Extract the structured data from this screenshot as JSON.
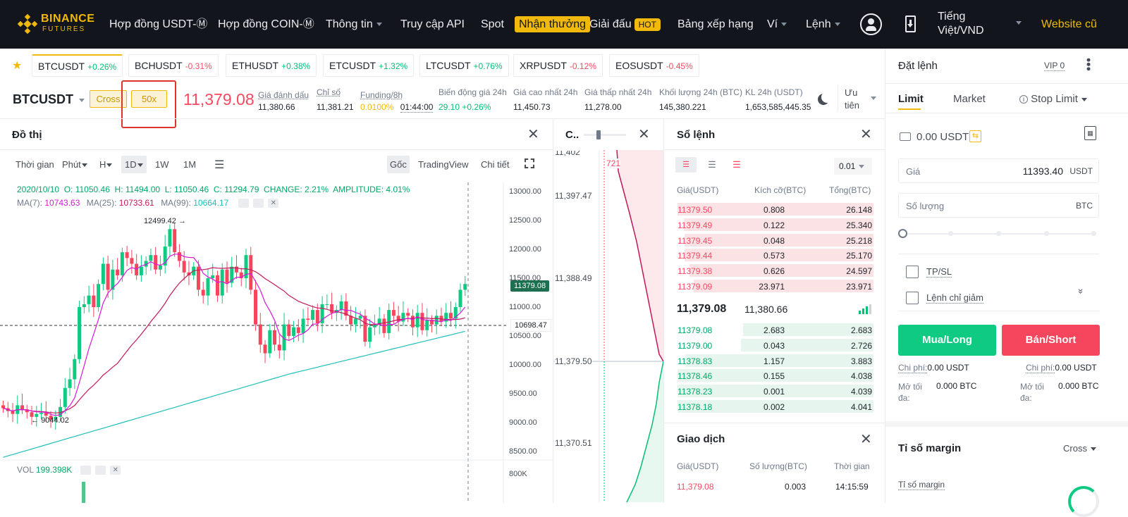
{
  "nav": {
    "logo_top": "BINANCE",
    "logo_bottom": "FUTURES",
    "items": [
      "Hợp đồng USDT-Ⓜ",
      "Hợp đồng COIN-Ⓜ",
      "Thông tin",
      "Truy cập API",
      "Spot",
      "Nhận thưởng",
      "Giải đấu",
      "Bảng xếp hạng",
      "Ví",
      "Lệnh"
    ],
    "hot": "HOT",
    "lang_line1": "Tiếng",
    "lang_line2": "Việt/VND",
    "website": "Website cũ"
  },
  "tickers": [
    {
      "sym": "BTCUSDT",
      "chg": "+0.26%",
      "up": true
    },
    {
      "sym": "BCHUSDT",
      "chg": "-0.31%",
      "up": false
    },
    {
      "sym": "ETHUSDT",
      "chg": "+0.38%",
      "up": true
    },
    {
      "sym": "ETCUSDT",
      "chg": "+1.32%",
      "up": true
    },
    {
      "sym": "LTCUSDT",
      "chg": "+0.76%",
      "up": true
    },
    {
      "sym": "XRPUSDT",
      "chg": "-0.12%",
      "up": false
    },
    {
      "sym": "EOSUSDT",
      "chg": "-0.45%",
      "up": false
    }
  ],
  "header": {
    "symbol": "BTCUSDT",
    "margin_mode": "Cross",
    "leverage": "50x",
    "last_price": "11,379.08",
    "stats": [
      {
        "label": "Giá đánh dấu",
        "value": "11,380.66"
      },
      {
        "label": "Chỉ số",
        "value": "11,381.21"
      },
      {
        "label": "Funding/8h",
        "value": "0.0100%",
        "value2": "01:44:00"
      },
      {
        "label": "Biến động giá 24h",
        "value": "29.10 +0.26%"
      },
      {
        "label": "Giá cao nhất 24h",
        "value": "11,450.73"
      },
      {
        "label": "Giá thấp nhất 24h",
        "value": "11,278.00"
      },
      {
        "label": "Khối lượng 24h (BTC)",
        "value": "145,380.221"
      },
      {
        "label": "KL 24h (USDT)",
        "value": "1,653,585,445.35"
      }
    ],
    "priority_line1": "Ưu",
    "priority_line2": "tiên"
  },
  "chart": {
    "title": "Đồ thị",
    "toolbar": [
      "Thời gian",
      "Phút",
      "H",
      "1D",
      "1W",
      "1M"
    ],
    "views": [
      "Gốc",
      "TradingView",
      "Chi tiết"
    ],
    "ohlc": "2020/10/10  O: 11050.46  H: 11494.00  L: 11050.46  C: 11294.79  CHANGE: 2.21%  AMPLITUDE: 4.01%",
    "ma7_label": "MA(7):",
    "ma7": "10743.63",
    "ma25_label": "MA(25):",
    "ma25": "10733.61",
    "ma99_label": "MA(99):",
    "ma99": "10664.17",
    "high_label": "12499.42",
    "low_label": "9044.02",
    "price_tag": "11379.08",
    "cross_tag": "10698.47",
    "axis": [
      "13000.00",
      "12500.00",
      "12000.00",
      "11500.00",
      "11000.00",
      "10500.00",
      "10000.00",
      "9500.00",
      "9000.00",
      "8500.00"
    ],
    "vol_label": "VOL",
    "vol_value": "199.398K",
    "vol_axis": "800K"
  },
  "depth": {
    "title": "C..",
    "axis": [
      "11,402",
      "11,397.47",
      "11,388.49",
      "11,379.50",
      "11,370.51"
    ],
    "mark": "721"
  },
  "orderbook": {
    "title": "Sổ lệnh",
    "precision": "0.01",
    "cols": [
      "Giá(USDT)",
      "Kích cỡ(BTC)",
      "Tổng(BTC)"
    ],
    "asks": [
      [
        "11379.50",
        "0.808",
        "26.148"
      ],
      [
        "11379.49",
        "0.122",
        "25.340"
      ],
      [
        "11379.45",
        "0.048",
        "25.218"
      ],
      [
        "11379.44",
        "0.573",
        "25.170"
      ],
      [
        "11379.38",
        "0.626",
        "24.597"
      ],
      [
        "11379.09",
        "23.971",
        "23.971"
      ]
    ],
    "last": "11,379.08",
    "mark": "11,380.66",
    "bids": [
      [
        "11379.08",
        "2.683",
        "2.683"
      ],
      [
        "11379.00",
        "0.043",
        "2.726"
      ],
      [
        "11378.83",
        "1.157",
        "3.883"
      ],
      [
        "11378.46",
        "0.155",
        "4.038"
      ],
      [
        "11378.23",
        "0.001",
        "4.039"
      ],
      [
        "11378.18",
        "0.002",
        "4.041"
      ]
    ]
  },
  "trades": {
    "title": "Giao dịch",
    "cols": [
      "Giá(USDT)",
      "Số lượng(BTC)",
      "Thời gian"
    ],
    "row": [
      "11,379.08",
      "0.003",
      "14:15:59"
    ]
  },
  "order": {
    "title": "Đặt lệnh",
    "vip": "VIP 0",
    "tabs": [
      "Limit",
      "Market",
      "Stop Limit"
    ],
    "balance": "0.00 USDT",
    "price_label": "Giá",
    "price_value": "11393.40",
    "price_unit": "USDT",
    "qty_placeholder": "Số lượng",
    "qty_unit": "BTC",
    "tpsl": "TP/SL",
    "reduce": "Lệnh chỉ giảm",
    "buy": "Mua/Long",
    "sell": "Bán/Short",
    "fee_label": "Chi phí:",
    "fee_buy": "0.00 USDT",
    "fee_sell": "0.00 USDT",
    "max_label_1": "Mở tối",
    "max_label_2": "đa:",
    "max_buy": "0.000 BTC",
    "max_sell": "0.000 BTC",
    "margin_title": "Tỉ số margin",
    "margin_mode": "Cross",
    "margin_ratio": "Tỉ số margin"
  }
}
